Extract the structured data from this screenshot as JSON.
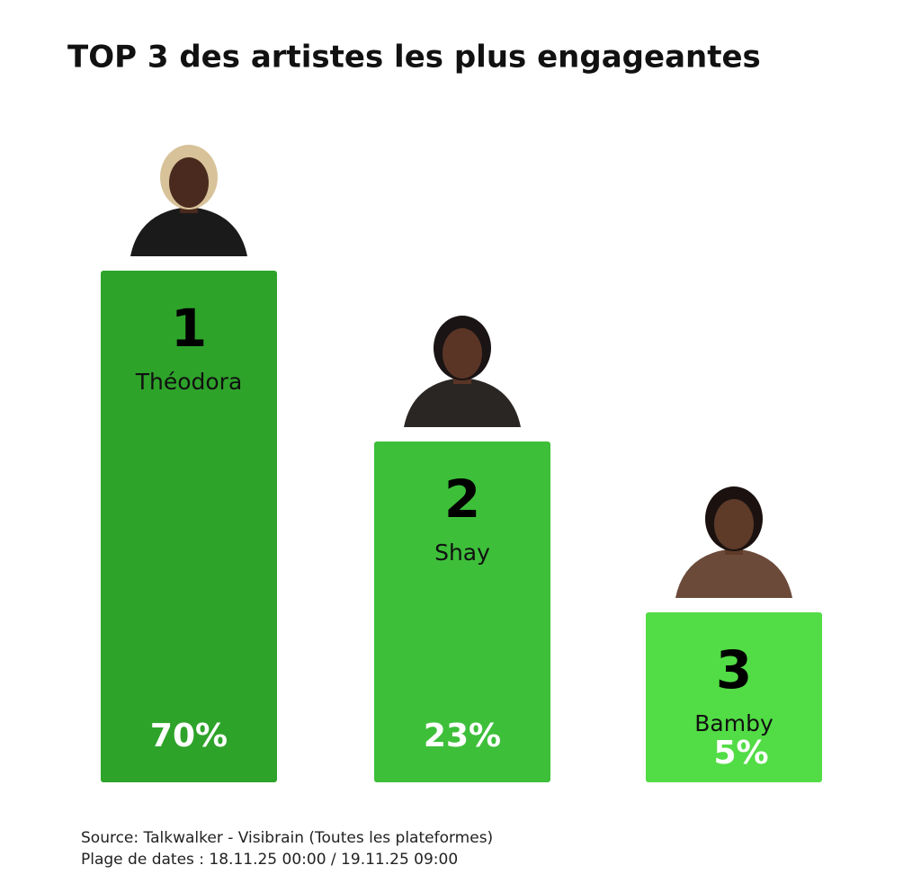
{
  "chart_data": {
    "type": "podium",
    "title": "TOP 3 des artistes les plus engageantes",
    "categories": [
      "Théodora",
      "Shay",
      "Bamby"
    ],
    "ranks": [
      1,
      2,
      3
    ],
    "values": [
      70,
      23,
      5
    ],
    "value_labels": [
      "70%",
      "23%",
      "5%"
    ],
    "colors": [
      "#2ea32a",
      "#3dbf3a",
      "#52dc45"
    ]
  },
  "source": [
    "Source: Talkwalker - Visibrain (Toutes les plateformes)",
    "Plage de dates : 18.11.25 00:00 / 19.11.25 09:00"
  ]
}
